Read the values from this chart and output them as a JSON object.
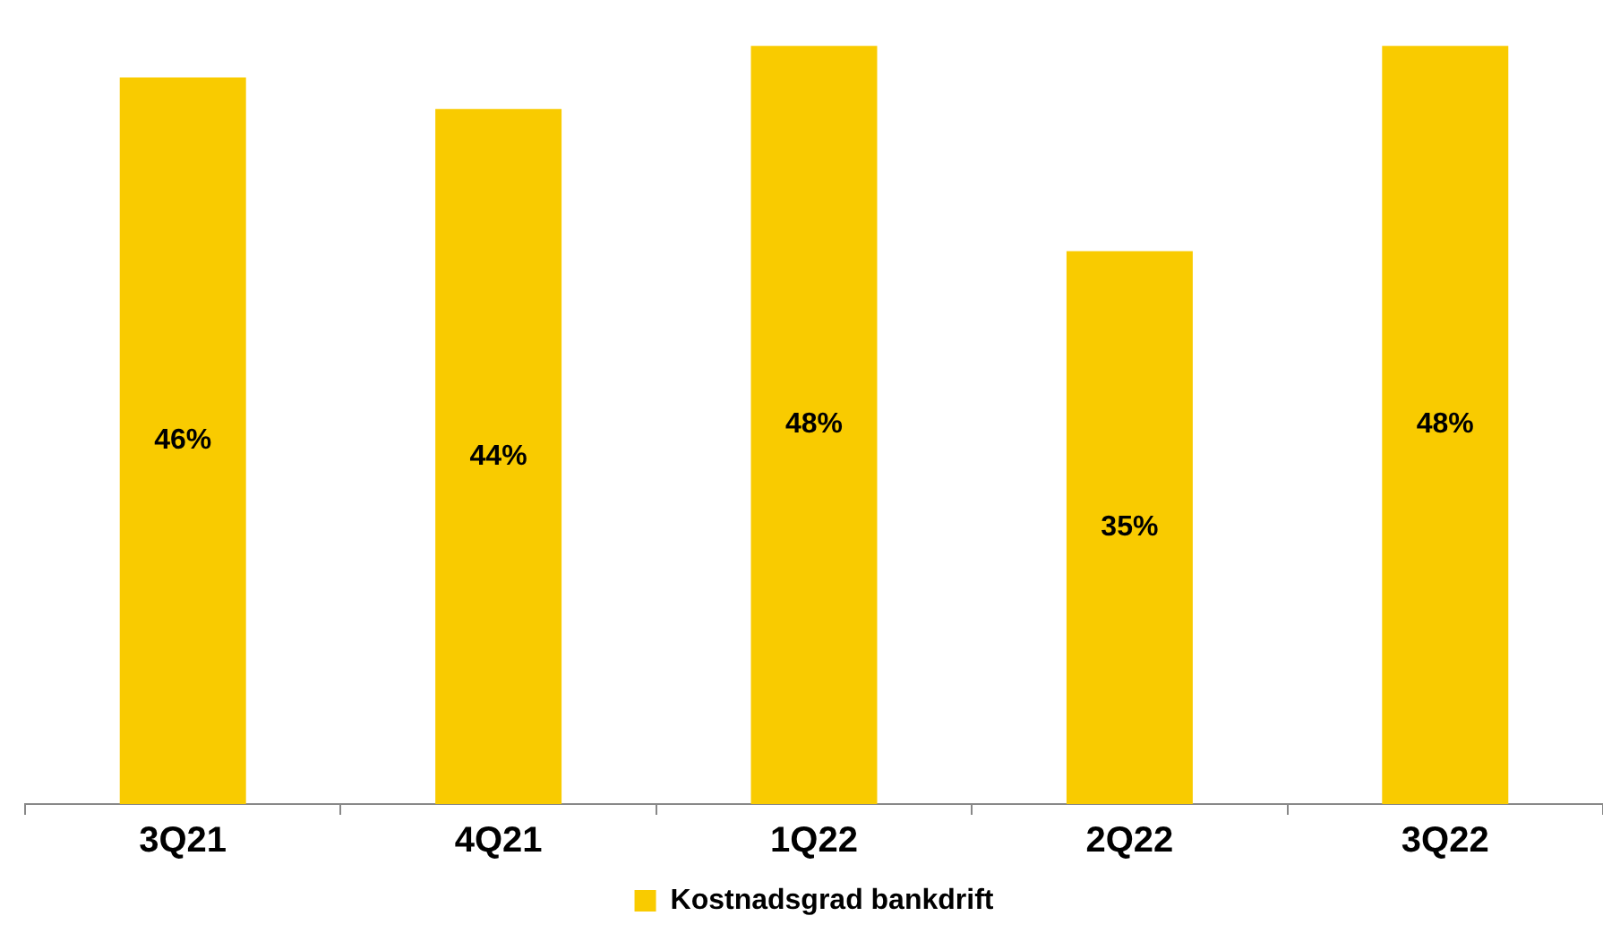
{
  "chart_data": {
    "type": "bar",
    "categories": [
      "3Q21",
      "4Q21",
      "1Q22",
      "2Q22",
      "3Q22"
    ],
    "series": [
      {
        "name": "Kostnadsgrad bankdrift",
        "color": "#f9cb00",
        "values": [
          46,
          44,
          48,
          35,
          48
        ],
        "value_labels": [
          "46%",
          "44%",
          "48%",
          "35%",
          "48%"
        ]
      }
    ],
    "tick_labels": "x",
    "grid": false,
    "legend": "bottom"
  }
}
